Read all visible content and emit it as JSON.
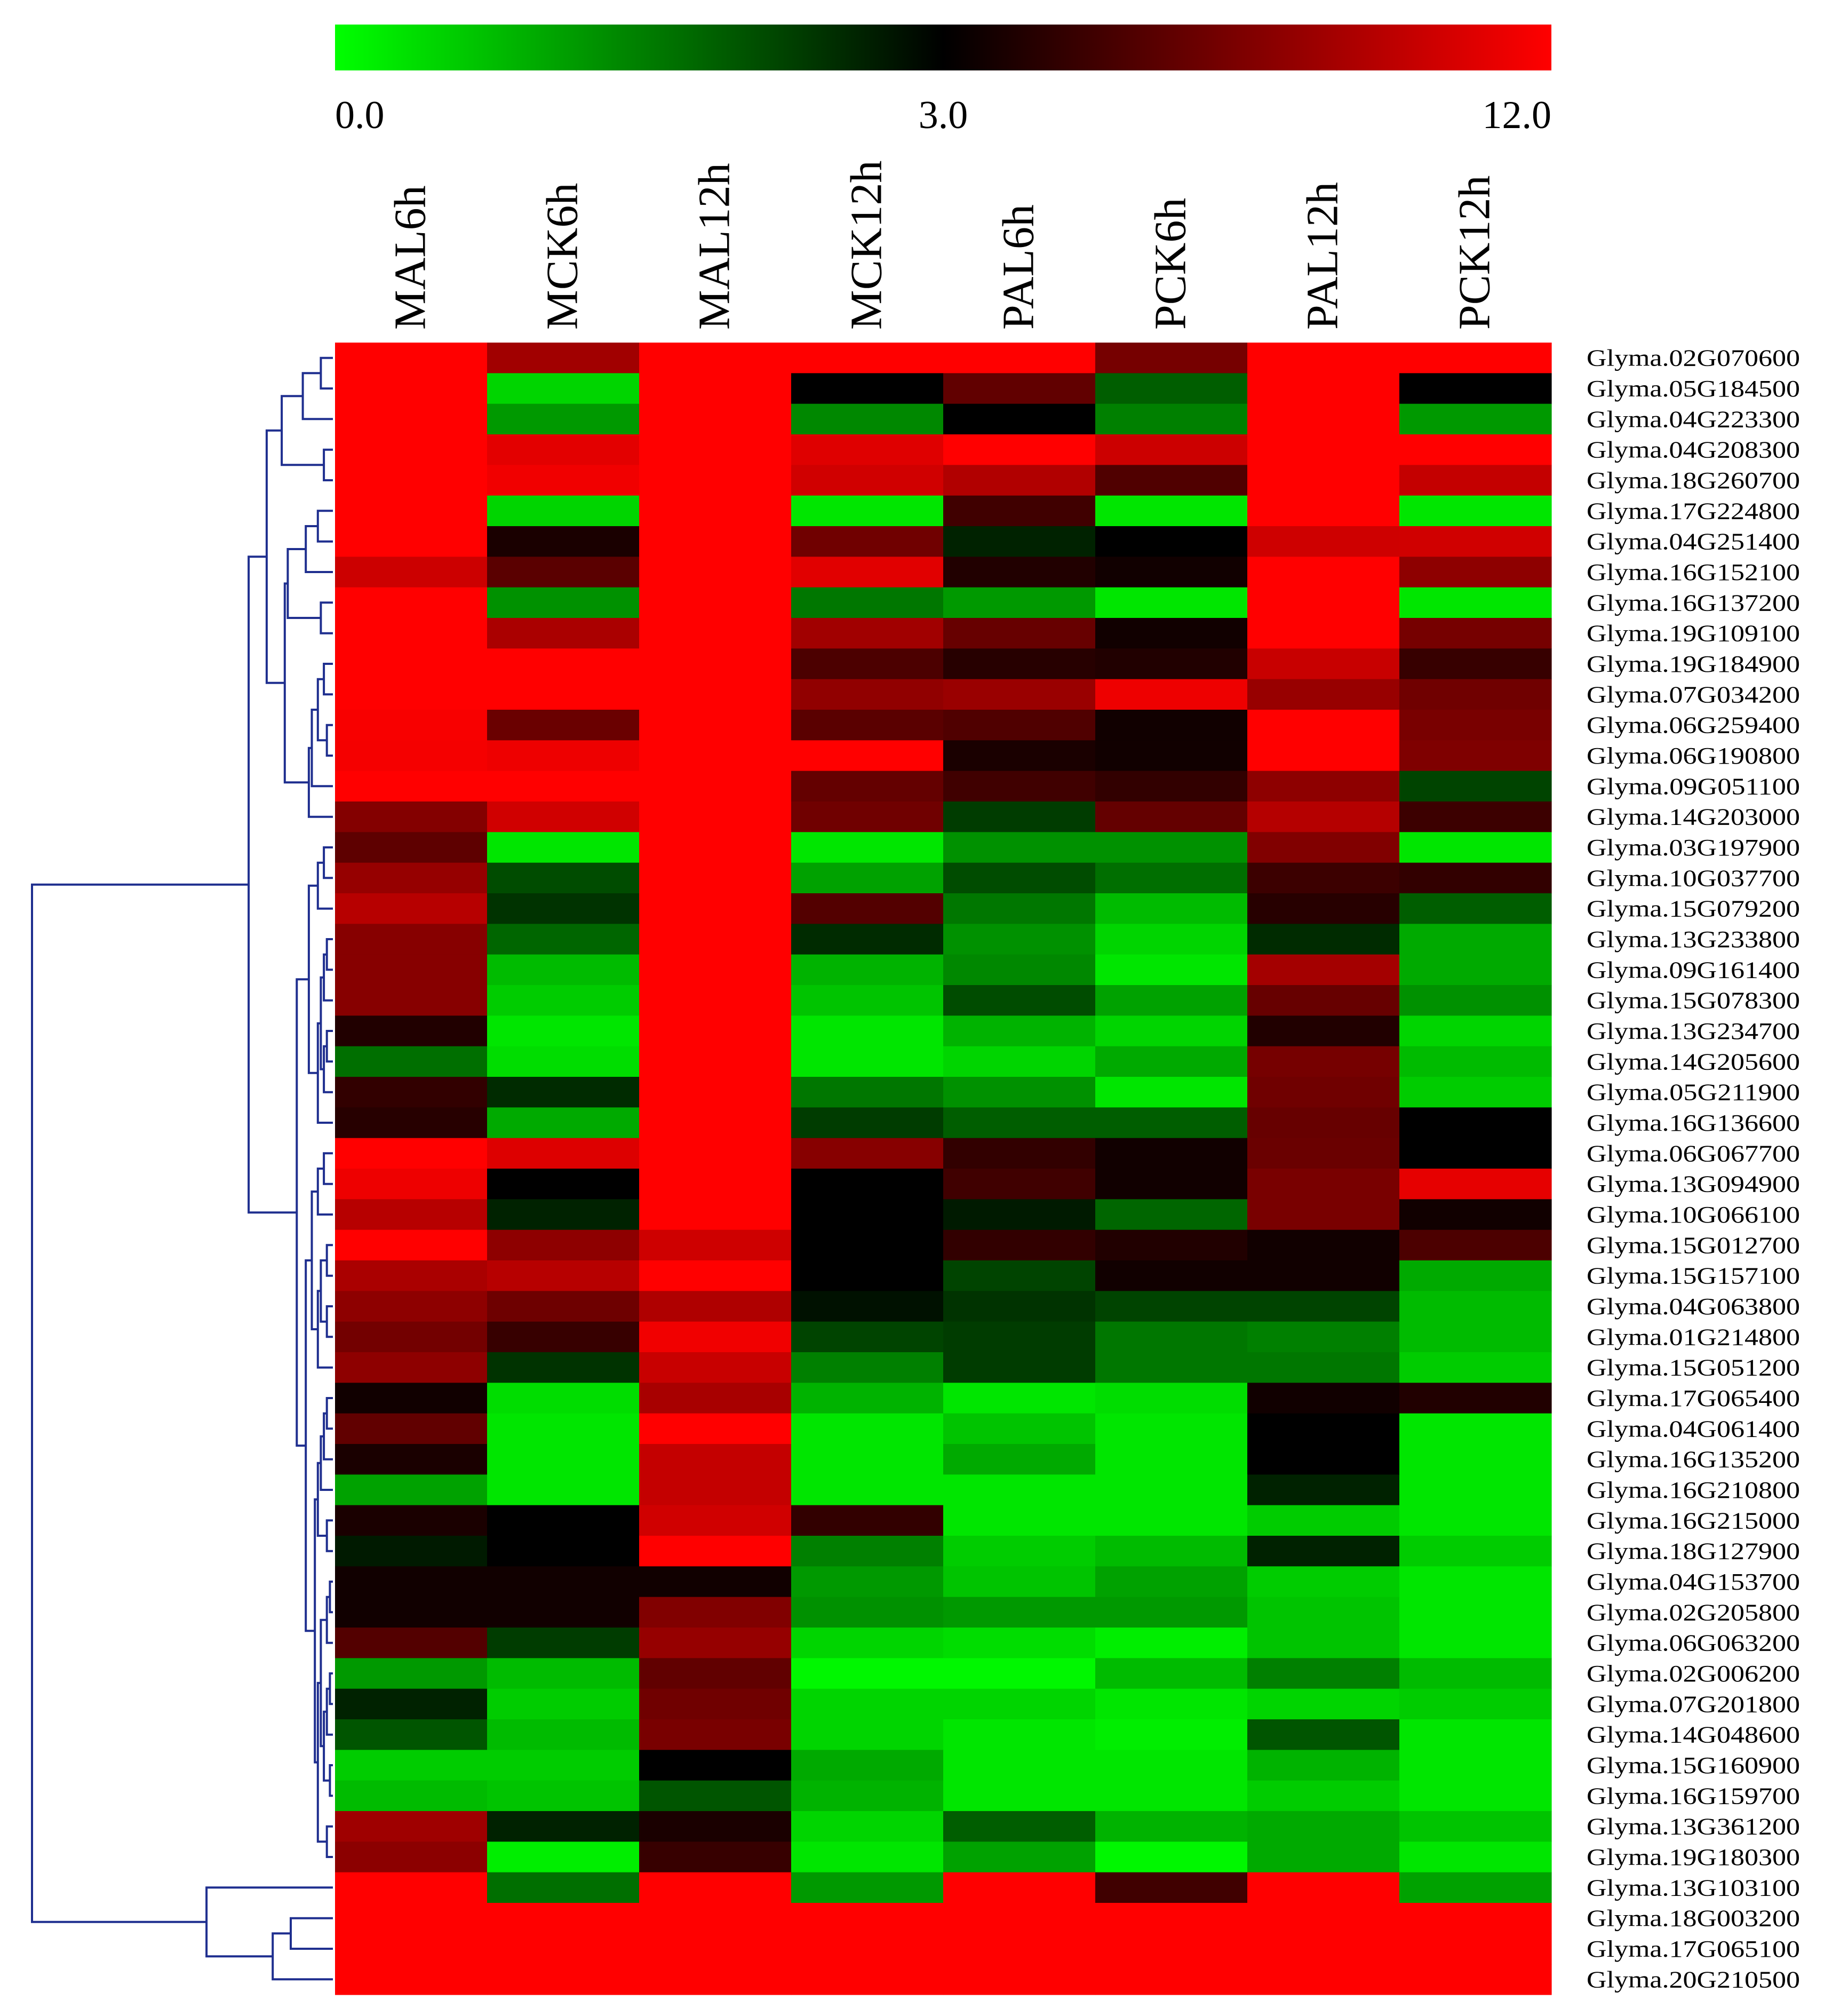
{
  "chart_data": {
    "type": "heatmap",
    "title": "",
    "color_scale": {
      "min": 0.0,
      "mid": 3.0,
      "max": 12.0,
      "tick_labels": [
        "0.0",
        "3.0",
        "12.0"
      ],
      "low_color": "#00ff00",
      "mid_color": "#000000",
      "high_color": "#ff0000"
    },
    "columns": [
      "MAL6h",
      "MCK6h",
      "MAL12h",
      "MCK12h",
      "PAL6h",
      "PCK6h",
      "PAL12h",
      "PCK12h"
    ],
    "rows": [
      "Glyma.02G070600",
      "Glyma.05G184500",
      "Glyma.04G223300",
      "Glyma.04G208300",
      "Glyma.18G260700",
      "Glyma.17G224800",
      "Glyma.04G251400",
      "Glyma.16G152100",
      "Glyma.16G137200",
      "Glyma.19G109100",
      "Glyma.19G184900",
      "Glyma.07G034200",
      "Glyma.06G259400",
      "Glyma.06G190800",
      "Glyma.09G051100",
      "Glyma.14G203000",
      "Glyma.03G197900",
      "Glyma.10G037700",
      "Glyma.15G079200",
      "Glyma.13G233800",
      "Glyma.09G161400",
      "Glyma.15G078300",
      "Glyma.13G234700",
      "Glyma.14G205600",
      "Glyma.05G211900",
      "Glyma.16G136600",
      "Glyma.06G067700",
      "Glyma.13G094900",
      "Glyma.10G066100",
      "Glyma.15G012700",
      "Glyma.15G157100",
      "Glyma.04G063800",
      "Glyma.01G214800",
      "Glyma.15G051200",
      "Glyma.17G065400",
      "Glyma.04G061400",
      "Glyma.16G135200",
      "Glyma.16G210800",
      "Glyma.16G215000",
      "Glyma.18G127900",
      "Glyma.04G153700",
      "Glyma.02G205800",
      "Glyma.06G063200",
      "Glyma.02G006200",
      "Glyma.07G201800",
      "Glyma.14G048600",
      "Glyma.15G160900",
      "Glyma.16G159700",
      "Glyma.13G361200",
      "Glyma.19G180300",
      "Glyma.13G103100",
      "Glyma.18G003200",
      "Glyma.17G065100",
      "Glyma.20G210500"
    ],
    "values": [
      [
        12.0,
        7.2,
        12.0,
        12.0,
        12.0,
        5.5,
        12.0,
        12.0
      ],
      [
        12.0,
        0.5,
        12.0,
        3.0,
        4.8,
        1.9,
        12.0,
        3.0
      ],
      [
        12.0,
        1.2,
        12.0,
        1.4,
        3.0,
        1.5,
        12.0,
        1.2
      ],
      [
        12.0,
        10.4,
        12.0,
        10.2,
        12.0,
        9.2,
        12.0,
        12.0
      ],
      [
        12.0,
        11.2,
        12.0,
        9.4,
        7.9,
        4.3,
        12.0,
        8.8
      ],
      [
        12.0,
        0.5,
        12.0,
        0.3,
        3.9,
        0.3,
        12.0,
        0.3
      ],
      [
        12.0,
        3.2,
        12.0,
        5.3,
        2.6,
        3.0,
        9.3,
        9.4
      ],
      [
        9.2,
        4.6,
        12.0,
        10.3,
        3.3,
        3.1,
        12.0,
        6.4
      ],
      [
        12.0,
        1.3,
        12.0,
        1.6,
        1.2,
        0.3,
        12.0,
        0.3
      ],
      [
        12.0,
        7.6,
        12.0,
        7.2,
        5.0,
        3.1,
        12.0,
        5.5
      ],
      [
        12.0,
        12.0,
        12.0,
        4.2,
        3.4,
        3.3,
        9.0,
        3.7
      ],
      [
        12.0,
        12.0,
        12.0,
        6.5,
        6.9,
        11.0,
        6.8,
        5.3
      ],
      [
        11.6,
        5.1,
        12.0,
        4.6,
        4.3,
        3.1,
        12.0,
        5.6
      ],
      [
        11.4,
        11.0,
        12.0,
        12.0,
        3.2,
        3.1,
        12.0,
        5.8
      ],
      [
        12.0,
        12.0,
        12.0,
        4.9,
        3.9,
        3.6,
        6.4,
        2.2
      ],
      [
        6.0,
        9.4,
        12.0,
        5.3,
        2.3,
        4.9,
        8.1,
        3.8
      ],
      [
        4.7,
        0.3,
        12.0,
        0.3,
        1.3,
        1.3,
        5.9,
        0.3
      ],
      [
        6.7,
        2.1,
        12.0,
        1.1,
        2.1,
        1.7,
        3.8,
        3.6
      ],
      [
        8.2,
        2.4,
        12.0,
        4.4,
        1.6,
        0.8,
        3.4,
        1.9
      ],
      [
        6.1,
        1.8,
        12.0,
        2.5,
        1.3,
        0.5,
        2.5,
        1.0
      ],
      [
        6.1,
        0.8,
        12.0,
        0.9,
        1.4,
        0.3,
        7.3,
        1.0
      ],
      [
        6.1,
        0.6,
        12.0,
        0.7,
        2.1,
        1.1,
        5.0,
        1.3
      ],
      [
        3.3,
        0.3,
        12.0,
        0.3,
        0.9,
        0.5,
        3.3,
        0.5
      ],
      [
        1.7,
        0.4,
        12.0,
        0.3,
        0.5,
        1.0,
        5.5,
        0.8
      ],
      [
        3.6,
        2.5,
        12.0,
        1.6,
        1.3,
        0.3,
        5.3,
        0.6
      ],
      [
        3.4,
        1.0,
        12.0,
        2.3,
        1.9,
        1.9,
        5.0,
        3.0
      ],
      [
        12.0,
        10.1,
        12.0,
        6.1,
        3.6,
        3.1,
        5.1,
        3.0
      ],
      [
        11.0,
        3.0,
        12.0,
        3.0,
        3.9,
        3.1,
        5.6,
        10.6
      ],
      [
        8.2,
        2.6,
        12.0,
        3.0,
        2.7,
        1.8,
        5.6,
        3.1
      ],
      [
        12.0,
        6.4,
        9.3,
        3.0,
        3.6,
        3.3,
        3.1,
        4.2
      ],
      [
        7.6,
        8.2,
        12.0,
        3.0,
        2.2,
        3.1,
        3.1,
        1.0
      ],
      [
        6.4,
        5.2,
        7.8,
        2.8,
        2.4,
        2.2,
        2.2,
        0.8
      ],
      [
        5.4,
        3.7,
        11.2,
        2.2,
        2.3,
        1.6,
        1.5,
        0.8
      ],
      [
        6.4,
        2.4,
        9.0,
        1.5,
        2.3,
        1.6,
        1.6,
        0.6
      ],
      [
        3.1,
        0.4,
        7.5,
        0.9,
        0.3,
        0.4,
        3.1,
        3.3
      ],
      [
        4.8,
        0.3,
        12.0,
        0.3,
        0.7,
        0.3,
        3.0,
        0.3
      ],
      [
        3.2,
        0.3,
        8.8,
        0.3,
        1.0,
        0.3,
        3.0,
        0.3
      ],
      [
        1.1,
        0.3,
        8.8,
        0.3,
        0.3,
        0.3,
        2.6,
        0.3
      ],
      [
        3.2,
        3.0,
        9.4,
        3.6,
        0.3,
        0.3,
        0.6,
        0.3
      ],
      [
        2.7,
        3.0,
        12.0,
        1.5,
        0.6,
        0.8,
        2.6,
        0.6
      ],
      [
        3.1,
        3.1,
        3.1,
        1.2,
        0.7,
        1.1,
        0.6,
        0.3
      ],
      [
        3.1,
        3.1,
        5.9,
        1.3,
        1.2,
        1.2,
        0.7,
        0.3
      ],
      [
        4.4,
        2.3,
        6.7,
        0.5,
        0.4,
        0.2,
        0.7,
        0.3
      ],
      [
        1.2,
        0.8,
        4.8,
        0.1,
        0.1,
        0.8,
        1.5,
        0.8
      ],
      [
        2.6,
        0.6,
        5.3,
        0.5,
        0.5,
        0.3,
        0.5,
        0.6
      ],
      [
        2.0,
        0.8,
        5.6,
        0.5,
        0.3,
        0.2,
        2.0,
        0.3
      ],
      [
        0.6,
        0.6,
        3.0,
        1.0,
        0.3,
        0.3,
        0.9,
        0.3
      ],
      [
        0.8,
        0.7,
        2.0,
        0.9,
        0.3,
        0.3,
        0.6,
        0.3
      ],
      [
        7.1,
        2.6,
        3.2,
        0.5,
        1.9,
        0.9,
        1.0,
        0.7
      ],
      [
        6.3,
        0.2,
        3.7,
        0.3,
        1.1,
        0.1,
        1.0,
        0.3
      ],
      [
        12.0,
        1.7,
        12.0,
        1.2,
        12.0,
        3.9,
        12.0,
        1.1
      ],
      [
        12.0,
        12.0,
        12.0,
        12.0,
        12.0,
        12.0,
        12.0,
        12.0
      ],
      [
        12.0,
        12.0,
        12.0,
        12.0,
        12.0,
        12.0,
        12.0,
        12.0
      ],
      [
        12.0,
        12.0,
        12.0,
        12.0,
        12.0,
        12.0,
        12.0,
        12.0
      ]
    ],
    "dendrogram": {
      "side": "left",
      "color": "#1f2f8f",
      "merges": [
        [
          0,
          1
        ],
        [
          -1,
          2
        ],
        [
          3,
          4
        ],
        [
          -2,
          -3
        ],
        [
          5,
          6
        ],
        [
          -5,
          7
        ],
        [
          8,
          9
        ],
        [
          -6,
          -7
        ],
        [
          10,
          11
        ],
        [
          12,
          13
        ],
        [
          -9,
          -10
        ],
        [
          -11,
          14
        ],
        [
          -12,
          15
        ],
        [
          -8,
          -13
        ],
        [
          -4,
          -14
        ],
        [
          16,
          17
        ],
        [
          -16,
          18
        ],
        [
          19,
          20
        ],
        [
          -18,
          21
        ],
        [
          22,
          23
        ],
        [
          -20,
          24
        ],
        [
          -19,
          -21
        ],
        [
          -22,
          25
        ],
        [
          -17,
          -23
        ],
        [
          26,
          27
        ],
        [
          -25,
          28
        ],
        [
          29,
          30
        ],
        [
          31,
          32
        ],
        [
          -27,
          -28
        ],
        [
          -29,
          33
        ],
        [
          -26,
          -30
        ],
        [
          34,
          35
        ],
        [
          -32,
          36
        ],
        [
          -33,
          37
        ],
        [
          38,
          39
        ],
        [
          -34,
          -35
        ],
        [
          40,
          41
        ],
        [
          -37,
          42
        ],
        [
          43,
          44
        ],
        [
          -39,
          45
        ],
        [
          46,
          47
        ],
        [
          -40,
          -41
        ],
        [
          -38,
          -42
        ],
        [
          48,
          49
        ],
        [
          -43,
          -44
        ],
        [
          -36,
          -45
        ],
        [
          -31,
          -46
        ],
        [
          -24,
          -47
        ],
        [
          -15,
          -48
        ],
        [
          51,
          52
        ],
        [
          -50,
          53
        ],
        [
          50,
          -51
        ],
        [
          -49,
          -52
        ]
      ],
      "heights": [
        0.04,
        0.1,
        0.03,
        0.17,
        0.05,
        0.09,
        0.04,
        0.15,
        0.03,
        0.02,
        0.05,
        0.07,
        0.08,
        0.16,
        0.22,
        0.03,
        0.05,
        0.02,
        0.03,
        0.02,
        0.03,
        0.04,
        0.05,
        0.08,
        0.03,
        0.05,
        0.02,
        0.02,
        0.04,
        0.05,
        0.07,
        0.02,
        0.03,
        0.04,
        0.02,
        0.05,
        0.01,
        0.02,
        0.01,
        0.02,
        0.01,
        0.03,
        0.04,
        0.02,
        0.05,
        0.06,
        0.09,
        0.12,
        0.28,
        0.14,
        0.2,
        0.42,
        1.0
      ]
    }
  }
}
